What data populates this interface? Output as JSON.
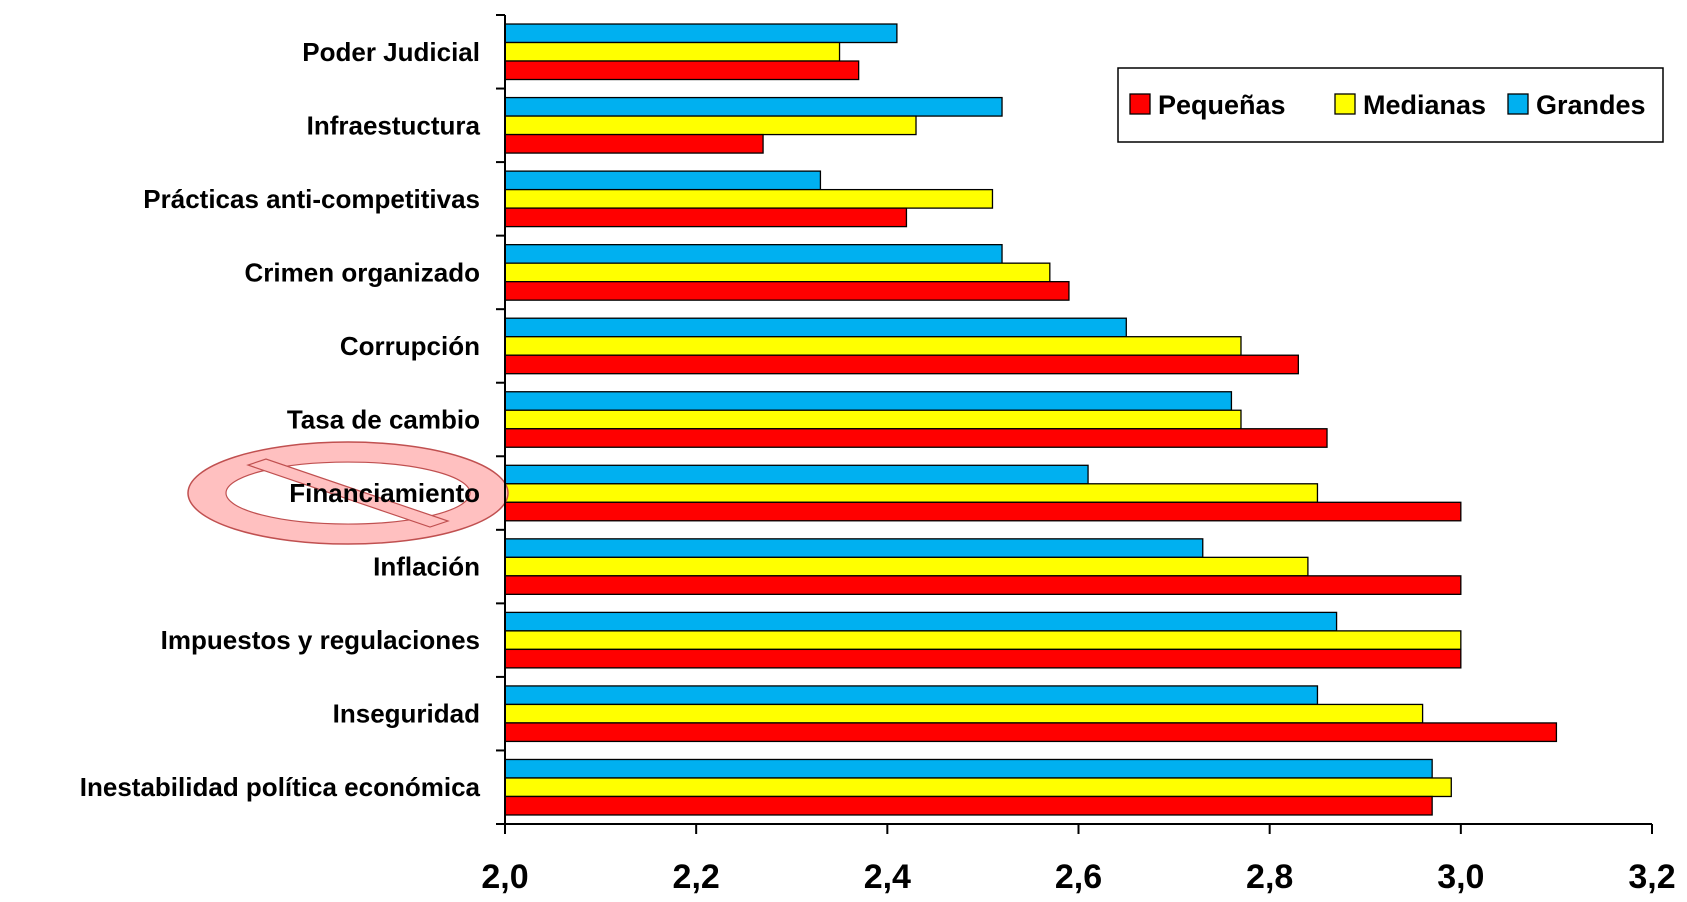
{
  "chart_data": {
    "type": "bar",
    "orientation": "horizontal",
    "categories": [
      "Inestabilidad política económica",
      "Inseguridad",
      "Impuestos y regulaciones",
      "Inflación",
      "Financiamiento",
      "Tasa de cambio",
      "Corrupción",
      "Crimen organizado",
      "Prácticas anti-competitivas",
      "Infraestuctura",
      "Poder Judicial"
    ],
    "series": [
      {
        "name": "Pequeñas",
        "color": "#ff0000",
        "values": [
          2.97,
          3.1,
          3.0,
          3.0,
          3.0,
          2.86,
          2.83,
          2.59,
          2.42,
          2.27,
          2.37
        ]
      },
      {
        "name": "Medianas",
        "color": "#ffff00",
        "values": [
          2.99,
          2.96,
          3.0,
          2.84,
          2.85,
          2.77,
          2.77,
          2.57,
          2.51,
          2.43,
          2.35
        ]
      },
      {
        "name": "Grandes",
        "color": "#00b0f0",
        "values": [
          2.97,
          2.85,
          2.87,
          2.73,
          2.61,
          2.76,
          2.65,
          2.52,
          2.33,
          2.52,
          2.41
        ]
      }
    ],
    "xlim": [
      2.0,
      3.2
    ],
    "xticks": [
      "2,0",
      "2,2",
      "2,4",
      "2,6",
      "2,8",
      "3,0",
      "3,2"
    ],
    "legend_position": "top-right",
    "annotation": {
      "type": "prohibited-symbol",
      "target": "Financiamiento",
      "color": "#ffc0c0"
    }
  }
}
